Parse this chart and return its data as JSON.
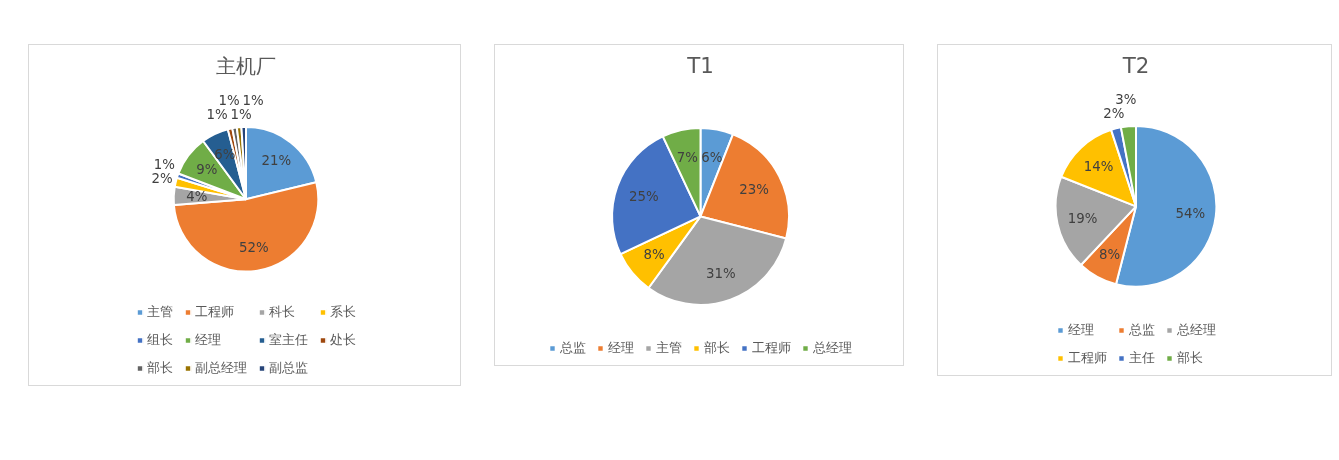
{
  "chart_data": [
    {
      "type": "pie",
      "title": "主机厂",
      "categories": [
        "主管",
        "工程师",
        "科长",
        "系长",
        "组长",
        "经理",
        "室主任",
        "处长",
        "部长",
        "副总经理",
        "副总监"
      ],
      "values": [
        21,
        52,
        4,
        2,
        1,
        9,
        6,
        1,
        1,
        1,
        1
      ],
      "value_labels": [
        "21%",
        "52%",
        "4%",
        "2%",
        "1%",
        "9%",
        "6%",
        "1%",
        "1%",
        "1%",
        "1%"
      ],
      "colors": [
        "#5b9bd5",
        "#ed7d31",
        "#a5a5a5",
        "#ffc000",
        "#4472c4",
        "#70ad47",
        "#255e91",
        "#9e480e",
        "#636363",
        "#997300",
        "#264478"
      ],
      "legend": "bottom"
    },
    {
      "type": "pie",
      "title": "T1",
      "categories": [
        "总监",
        "经理",
        "主管",
        "部长",
        "工程师",
        "总经理"
      ],
      "values": [
        6,
        23,
        31,
        8,
        25,
        7
      ],
      "value_labels": [
        "6%",
        "23%",
        "31%",
        "8%",
        "25%",
        "7%"
      ],
      "colors": [
        "#5b9bd5",
        "#ed7d31",
        "#a5a5a5",
        "#ffc000",
        "#4472c4",
        "#70ad47"
      ],
      "legend": "bottom"
    },
    {
      "type": "pie",
      "title": "T2",
      "categories": [
        "经理",
        "总监",
        "总经理",
        "工程师",
        "主任",
        "部长"
      ],
      "values": [
        54,
        8,
        19,
        14,
        2,
        3
      ],
      "value_labels": [
        "54%",
        "8%",
        "19%",
        "14%",
        "2%",
        "3%"
      ],
      "colors": [
        "#5b9bd5",
        "#ed7d31",
        "#a5a5a5",
        "#ffc000",
        "#4472c4",
        "#70ad47"
      ],
      "legend": "bottom"
    }
  ]
}
